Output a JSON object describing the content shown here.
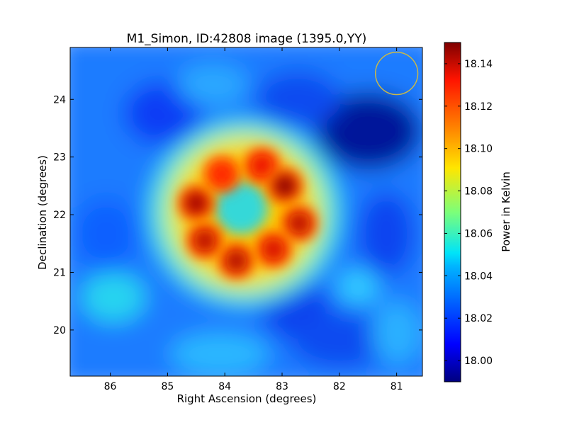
{
  "chart_data": {
    "type": "heatmap",
    "title": "M1_Simon, ID:42808 image (1395.0,YY)",
    "xlabel": "Right Ascension (degrees)",
    "ylabel": "Declination (degrees)",
    "xlim": [
      86.7,
      80.55
    ],
    "ylim": [
      19.2,
      24.9
    ],
    "xticks": [
      86,
      85,
      84,
      83,
      82,
      81
    ],
    "yticks": [
      20,
      21,
      22,
      23,
      24
    ],
    "colorbar": {
      "label": "Power in Kelvin",
      "range": [
        17.99,
        18.15
      ],
      "ticks": [
        "18.00",
        "18.02",
        "18.04",
        "18.06",
        "18.08",
        "18.10",
        "18.12",
        "18.14"
      ],
      "colormap": "jet"
    },
    "background_level": 18.025,
    "sources": [
      {
        "ra": 84.5,
        "dec": 22.2,
        "value": 18.145
      },
      {
        "ra": 84.05,
        "dec": 22.7,
        "value": 18.13
      },
      {
        "ra": 83.35,
        "dec": 22.85,
        "value": 18.135
      },
      {
        "ra": 82.95,
        "dec": 22.5,
        "value": 18.148
      },
      {
        "ra": 82.7,
        "dec": 21.85,
        "value": 18.142
      },
      {
        "ra": 83.15,
        "dec": 21.4,
        "value": 18.138
      },
      {
        "ra": 83.8,
        "dec": 21.2,
        "value": 18.143
      },
      {
        "ra": 84.35,
        "dec": 21.55,
        "value": 18.142
      },
      {
        "ra": 83.6,
        "dec": 22.05,
        "value": 18.06
      }
    ],
    "beam_marker": {
      "ra": 81.0,
      "dec": 24.45,
      "radius_deg": 0.37,
      "color": "#c8b84a"
    }
  }
}
